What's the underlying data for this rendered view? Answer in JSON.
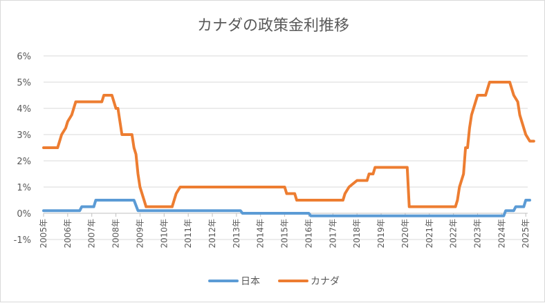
{
  "chart_data": {
    "type": "line",
    "title": "カナダの政策金利推移",
    "xlabel": "",
    "ylabel": "",
    "ylim": [
      -1,
      6
    ],
    "y_ticks": [
      "-1%",
      "0%",
      "1%",
      "2%",
      "3%",
      "4%",
      "5%",
      "6%"
    ],
    "x_ticks": [
      "2005年",
      "2006年",
      "2007年",
      "2008年",
      "2009年",
      "2010年",
      "2011年",
      "2012年",
      "2013年",
      "2014年",
      "2015年",
      "2016年",
      "2017年",
      "2018年",
      "2019年",
      "2020年",
      "2021年",
      "2022年",
      "2023年",
      "2024年",
      "2025年"
    ],
    "grid": true,
    "legend_position": "bottom",
    "series": [
      {
        "name": "日本",
        "color": "#5b9bd5",
        "points": [
          [
            "2005-01",
            0.1
          ],
          [
            "2006-07",
            0.1
          ],
          [
            "2006-08",
            0.25
          ],
          [
            "2007-02",
            0.25
          ],
          [
            "2007-03",
            0.5
          ],
          [
            "2008-10",
            0.5
          ],
          [
            "2008-11",
            0.3
          ],
          [
            "2008-12",
            0.1
          ],
          [
            "2013-03",
            0.1
          ],
          [
            "2013-04",
            0.0
          ],
          [
            "2016-01",
            0.0
          ],
          [
            "2016-02",
            -0.1
          ],
          [
            "2024-02",
            -0.1
          ],
          [
            "2024-03",
            0.1
          ],
          [
            "2024-07",
            0.1
          ],
          [
            "2024-08",
            0.25
          ],
          [
            "2024-12",
            0.25
          ],
          [
            "2025-01",
            0.5
          ],
          [
            "2025-03",
            0.5
          ]
        ]
      },
      {
        "name": "カナダ",
        "color": "#ed7d31",
        "points": [
          [
            "2005-01",
            2.5
          ],
          [
            "2005-08",
            2.5
          ],
          [
            "2005-09",
            2.75
          ],
          [
            "2005-10",
            3.0
          ],
          [
            "2005-12",
            3.25
          ],
          [
            "2006-01",
            3.5
          ],
          [
            "2006-03",
            3.75
          ],
          [
            "2006-04",
            4.0
          ],
          [
            "2006-05",
            4.25
          ],
          [
            "2007-06",
            4.25
          ],
          [
            "2007-07",
            4.5
          ],
          [
            "2007-11",
            4.5
          ],
          [
            "2007-12",
            4.25
          ],
          [
            "2008-01",
            4.0
          ],
          [
            "2008-02",
            4.0
          ],
          [
            "2008-03",
            3.5
          ],
          [
            "2008-04",
            3.0
          ],
          [
            "2008-09",
            3.0
          ],
          [
            "2008-10",
            2.5
          ],
          [
            "2008-11",
            2.25
          ],
          [
            "2008-12",
            1.5
          ],
          [
            "2009-01",
            1.0
          ],
          [
            "2009-03",
            0.5
          ],
          [
            "2009-04",
            0.25
          ],
          [
            "2010-05",
            0.25
          ],
          [
            "2010-06",
            0.5
          ],
          [
            "2010-07",
            0.75
          ],
          [
            "2010-09",
            1.0
          ],
          [
            "2015-01",
            1.0
          ],
          [
            "2015-02",
            0.75
          ],
          [
            "2015-06",
            0.75
          ],
          [
            "2015-07",
            0.5
          ],
          [
            "2017-06",
            0.5
          ],
          [
            "2017-07",
            0.75
          ],
          [
            "2017-09",
            1.0
          ],
          [
            "2018-01",
            1.25
          ],
          [
            "2018-06",
            1.25
          ],
          [
            "2018-07",
            1.5
          ],
          [
            "2018-09",
            1.5
          ],
          [
            "2018-10",
            1.75
          ],
          [
            "2020-02",
            1.75
          ],
          [
            "2020-03",
            0.25
          ],
          [
            "2022-02",
            0.25
          ],
          [
            "2022-03",
            0.5
          ],
          [
            "2022-04",
            1.0
          ],
          [
            "2022-06",
            1.5
          ],
          [
            "2022-07",
            2.5
          ],
          [
            "2022-08",
            2.5
          ],
          [
            "2022-09",
            3.25
          ],
          [
            "2022-10",
            3.75
          ],
          [
            "2022-12",
            4.25
          ],
          [
            "2023-01",
            4.5
          ],
          [
            "2023-05",
            4.5
          ],
          [
            "2023-06",
            4.75
          ],
          [
            "2023-07",
            5.0
          ],
          [
            "2024-05",
            5.0
          ],
          [
            "2024-06",
            4.75
          ],
          [
            "2024-07",
            4.5
          ],
          [
            "2024-09",
            4.25
          ],
          [
            "2024-10",
            3.75
          ],
          [
            "2024-12",
            3.25
          ],
          [
            "2025-01",
            3.0
          ],
          [
            "2025-03",
            2.75
          ],
          [
            "2025-05",
            2.75
          ]
        ]
      }
    ]
  }
}
